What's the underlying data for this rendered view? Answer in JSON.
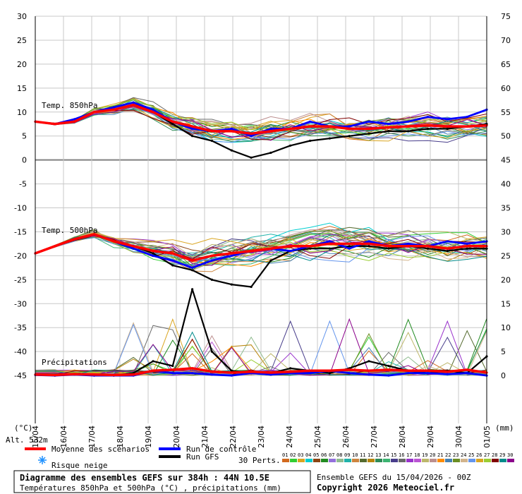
{
  "chart_data": {
    "type": "line",
    "title": "Diagramme des ensembles GEFS sur 384h : 44N 10.5E",
    "subtitle": "Températures 850hPa et 500hPa (°C) , précipitations (mm)",
    "left_axis": {
      "unit": "(°C)",
      "ylim": [
        -55,
        30
      ],
      "ticks": [
        30,
        25,
        20,
        15,
        10,
        5,
        0,
        -5,
        -10,
        -15,
        -20,
        -25,
        -30,
        -35,
        -40,
        -45
      ]
    },
    "right_axis": {
      "unit": "(mm)",
      "ylim": [
        -10,
        75
      ],
      "ticks": [
        75,
        70,
        65,
        60,
        55,
        50,
        45,
        40,
        35,
        30,
        25,
        20,
        15,
        10,
        5,
        0
      ]
    },
    "x": [
      "15/04",
      "16/04",
      "17/04",
      "18/04",
      "19/04",
      "20/04",
      "21/04",
      "22/04",
      "23/04",
      "24/04",
      "25/04",
      "26/04",
      "27/04",
      "28/04",
      "29/04",
      "30/04",
      "01/05"
    ],
    "panel_labels": [
      "Temp. 850hPa",
      "Temp. 500hPa",
      "Précipitations"
    ],
    "altitude": "Alt. 532m",
    "series": [
      {
        "name": "Moyenne des scénarios",
        "color": "#ff0000",
        "t850": [
          8,
          7.5,
          8,
          10,
          10.5,
          11.5,
          10,
          8,
          7,
          6,
          6,
          5.5,
          6,
          6.5,
          7,
          7,
          6.5,
          6.5,
          6.8,
          7,
          7.2,
          7,
          7,
          7.2
        ],
        "t500": [
          -19.5,
          -18,
          -16.5,
          -15.5,
          -17,
          -18,
          -19,
          -19.5,
          -21,
          -20,
          -19.5,
          -19,
          -18.5,
          -18,
          -18,
          -17.5,
          -17.5,
          -17.5,
          -18,
          -18,
          -18,
          -18.5,
          -18,
          -18
        ],
        "precip": [
          0.2,
          0.1,
          0.3,
          0.2,
          0.1,
          0.2,
          1,
          1.2,
          1.5,
          0.8,
          0.6,
          0.8,
          0.6,
          0.8,
          1,
          1,
          1.2,
          1,
          1.2,
          1,
          1,
          0.8,
          1.2,
          0.6
        ]
      },
      {
        "name": "Run de contrôle",
        "color": "#0000ff",
        "t850": [
          8,
          7.5,
          8.5,
          10,
          11,
          12,
          10.5,
          8,
          6.5,
          6,
          6.5,
          5,
          6.5,
          6.5,
          8,
          7,
          7,
          8,
          7.5,
          8,
          9,
          8.5,
          9,
          10.5
        ],
        "t500": [
          -19.5,
          -18,
          -16.5,
          -15.5,
          -17,
          -18.5,
          -20,
          -21,
          -22.5,
          -21,
          -20,
          -19,
          -18.5,
          -19,
          -18,
          -17,
          -18.5,
          -17,
          -18,
          -17.5,
          -18,
          -17,
          -17.5,
          -17
        ],
        "precip": [
          0.1,
          0,
          0.2,
          0,
          0,
          0,
          1,
          0.5,
          0.5,
          0.2,
          0,
          0.5,
          0.2,
          0.5,
          0.5,
          1,
          0.5,
          0.2,
          0,
          0.5,
          0.5,
          0.3,
          0.5,
          0
        ]
      },
      {
        "name": "Run GFS",
        "color": "#000000",
        "t850": [
          8,
          7.5,
          8,
          10,
          11,
          12,
          10,
          7.5,
          5,
          4,
          2,
          0.5,
          1.5,
          3,
          4,
          4.5,
          5,
          5.5,
          6,
          6,
          6.5,
          6.5,
          7,
          7.5
        ],
        "t500": [
          -19.5,
          -18,
          -16.5,
          -15.5,
          -17,
          -18,
          -19.5,
          -22,
          -23,
          -25,
          -26,
          -26.5,
          -21,
          -19,
          -18.5,
          -18.5,
          -18,
          -18,
          -18.5,
          -18,
          -18.5,
          -19,
          -18.5,
          -18.5
        ],
        "precip": [
          0.2,
          0,
          0.3,
          0,
          0,
          0.5,
          3,
          2,
          18,
          5,
          1,
          0.5,
          0.5,
          1.5,
          1,
          0.5,
          1.5,
          3,
          2,
          1,
          0.5,
          1,
          0.5,
          4
        ]
      }
    ],
    "ensemble_members": [
      "01",
      "02",
      "03",
      "04",
      "05",
      "06",
      "07",
      "08",
      "09",
      "10",
      "11",
      "12",
      "13",
      "14",
      "15",
      "16",
      "17",
      "18",
      "19",
      "20",
      "21",
      "22",
      "23",
      "24",
      "25",
      "26",
      "27",
      "28",
      "29",
      "30"
    ],
    "member_colors": [
      "#d2691e",
      "#32cd32",
      "#daa520",
      "#00ced1",
      "#8b4513",
      "#228b22",
      "#9370db",
      "#8fbc8f",
      "#20b2aa",
      "#cd853f",
      "#556b2f",
      "#b8860b",
      "#2e8b57",
      "#3cb371",
      "#483d8b",
      "#696969",
      "#9932cc",
      "#ba55d3",
      "#bdb76b",
      "#bc8f8f",
      "#ff8c00",
      "#4682b4",
      "#6b8e23",
      "#d2b48c",
      "#6495ed",
      "#daa520",
      "#9acd32",
      "#800000",
      "#008b8b",
      "#8b008b"
    ],
    "grid": true
  },
  "legend": {
    "mean": "Moyenne des scénarios",
    "control": "Run de contrôle",
    "gfs": "Run GFS",
    "snow": "Risque neige",
    "perts": "30 Perts."
  },
  "footer": {
    "title": "Diagramme des ensembles GEFS sur 384h : 44N 10.5E",
    "subtitle": "Températures 850hPa et 500hPa (°C) , précipitations (mm)",
    "run": "Ensemble GEFS du 15/04/2026 - 00Z",
    "copyright": "Copyright 2026 Meteociel.fr"
  },
  "colors": {
    "mean": "#ff0000",
    "control": "#0000ff",
    "gfs": "#000000",
    "grid": "#c8c8c8",
    "zero": "#808080"
  }
}
